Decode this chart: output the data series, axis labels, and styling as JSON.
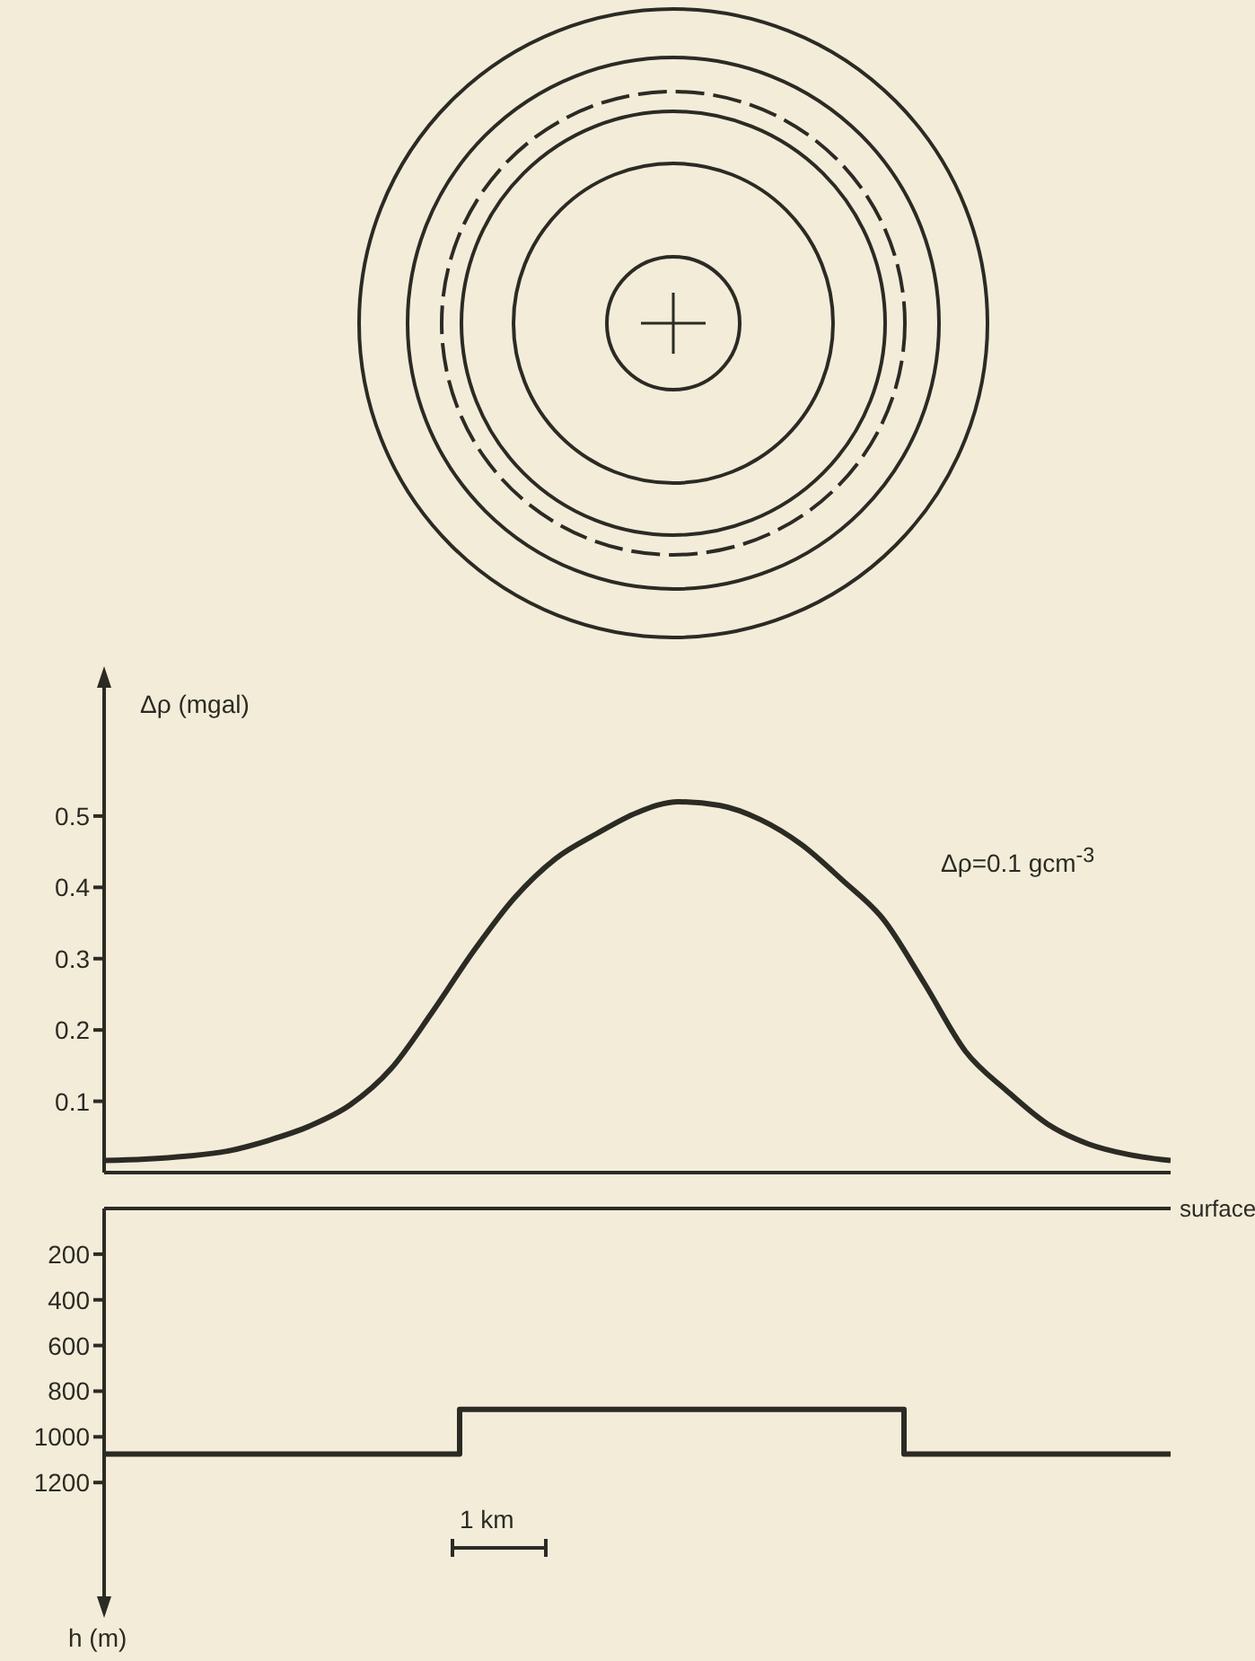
{
  "chart_data": [
    {
      "type": "line",
      "ylabel": "Δρ (mgal)",
      "annotations": [
        "Δρ=0.1 gcm$^{-3}$"
      ],
      "categories": [
        null,
        null,
        null,
        null,
        null,
        null,
        null,
        null,
        null,
        null,
        null,
        null,
        null,
        null,
        null,
        null,
        null,
        null,
        null,
        null,
        null,
        null,
        null,
        null,
        null,
        null,
        null
      ],
      "values": [
        0.017,
        0.019,
        0.023,
        0.03,
        0.045,
        0.065,
        0.095,
        0.146,
        0.225,
        0.31,
        0.385,
        0.44,
        0.475,
        0.505,
        0.52,
        0.515,
        0.495,
        0.46,
        0.41,
        0.355,
        0.265,
        0.17,
        0.115,
        0.068,
        0.04,
        0.025,
        0.017
      ],
      "color": "#2b2b24",
      "ylim": [
        0,
        0.69
      ],
      "yticks": [
        0.1,
        0.2,
        0.3,
        0.4,
        0.5
      ],
      "tick_labels": "y"
    },
    {
      "type": "step",
      "ylabel": "h (m)",
      "annotations": [
        "1 km"
      ],
      "categories": [
        null,
        null,
        null,
        null,
        null,
        null,
        null,
        null,
        null,
        null,
        null,
        null,
        null
      ],
      "values": [
        1075,
        1075,
        1075,
        1075,
        880,
        880,
        880,
        880,
        880,
        1075,
        1075,
        1075,
        1075
      ],
      "color": "#2b2b24",
      "ylim": [
        1730,
        0
      ],
      "yticks": [
        200,
        400,
        600,
        800,
        1000,
        1200
      ],
      "tick_labels": "y",
      "ref_lines": [
        {
          "axis": "y",
          "value": 0,
          "label": "surface"
        }
      ]
    }
  ]
}
